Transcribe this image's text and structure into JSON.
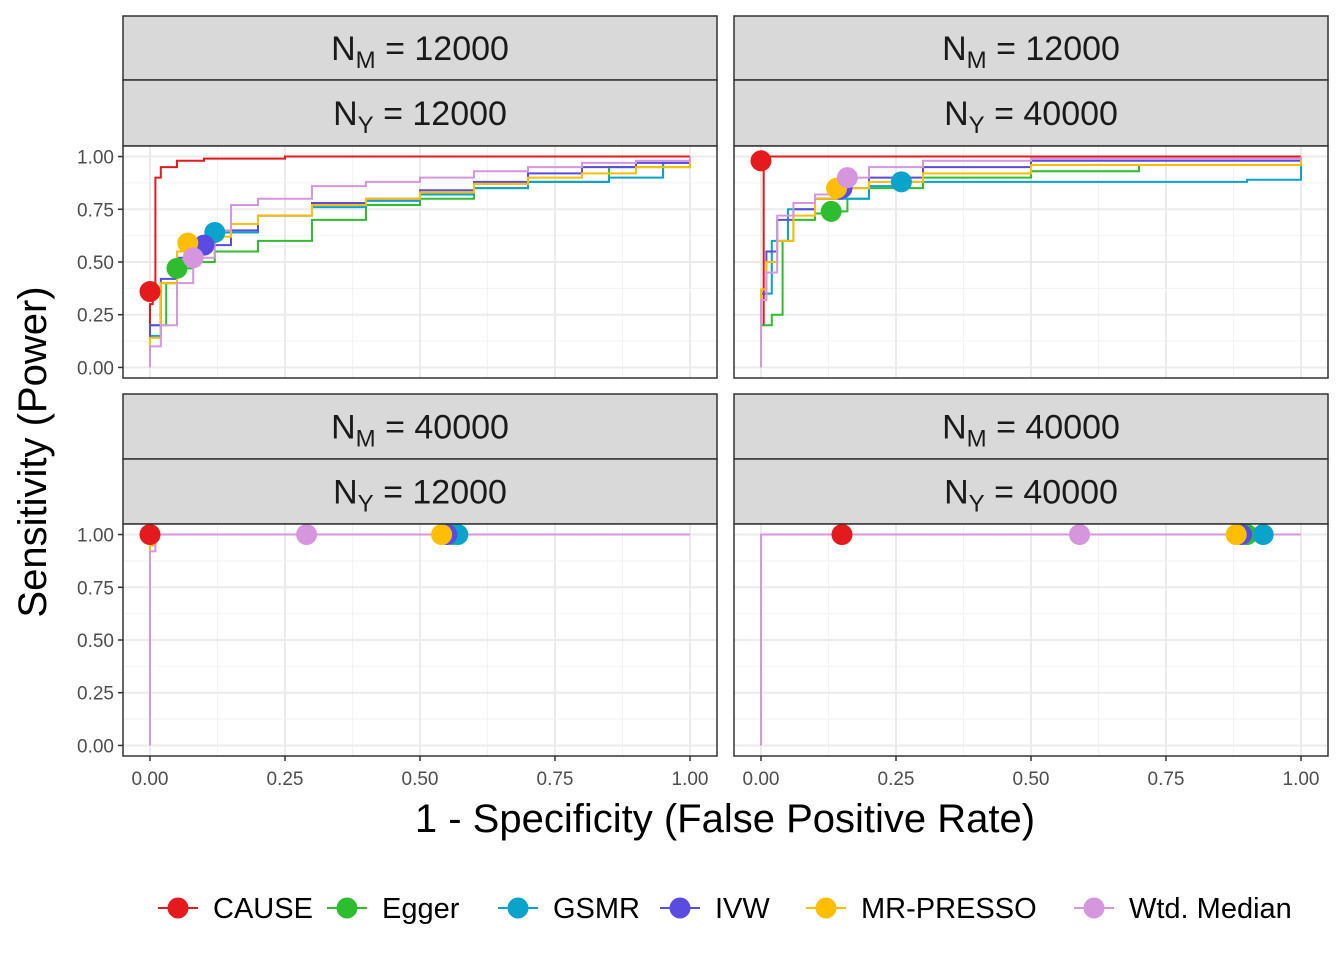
{
  "chart_data": {
    "type": "line",
    "xlabel": "1 - Specificity (False Positive Rate)",
    "ylabel": "Sensitivity (Power)",
    "xlim": [
      0,
      1
    ],
    "ylim": [
      0,
      1
    ],
    "x_ticks": [
      "0.00",
      "0.25",
      "0.50",
      "0.75",
      "1.00"
    ],
    "y_ticks": [
      "0.00",
      "0.25",
      "0.50",
      "0.75",
      "1.00"
    ],
    "grid": true,
    "legend_position": "bottom",
    "series_styles": [
      {
        "name": "CAUSE",
        "color": "#e41a1c"
      },
      {
        "name": "Egger",
        "color": "#2ebd2e"
      },
      {
        "name": "GSMR",
        "color": "#0aa3cc"
      },
      {
        "name": "IVW",
        "color": "#5a4ce0"
      },
      {
        "name": "MR-PRESSO",
        "color": "#ffbf00"
      },
      {
        "name": "Wtd. Median",
        "color": "#d696de"
      }
    ],
    "panels": [
      {
        "strip_top": {
          "var": "N",
          "sub": "M",
          "value": "= 12000"
        },
        "strip_bottom": {
          "var": "N",
          "sub": "Y",
          "value": "= 12000"
        },
        "series": [
          {
            "name": "CAUSE",
            "x": [
              0,
              0,
              0.005,
              0.01,
              0.02,
              0.05,
              0.1,
              0.25,
              1.0
            ],
            "y": [
              0,
              0.3,
              0.36,
              0.9,
              0.95,
              0.98,
              0.99,
              1.0,
              1.0
            ],
            "point": [
              0,
              0.36
            ]
          },
          {
            "name": "Egger",
            "x": [
              0,
              0,
              0.03,
              0.05,
              0.08,
              0.12,
              0.2,
              0.3,
              0.4,
              0.5,
              0.6,
              0.7,
              0.85,
              1.0
            ],
            "y": [
              0,
              0.2,
              0.4,
              0.47,
              0.5,
              0.55,
              0.6,
              0.7,
              0.77,
              0.8,
              0.85,
              0.88,
              0.95,
              1.0
            ],
            "point": [
              0.05,
              0.47
            ]
          },
          {
            "name": "GSMR",
            "x": [
              0,
              0,
              0.02,
              0.05,
              0.08,
              0.12,
              0.2,
              0.3,
              0.4,
              0.5,
              0.6,
              0.7,
              0.85,
              0.95,
              1.0
            ],
            "y": [
              0,
              0.15,
              0.4,
              0.5,
              0.58,
              0.64,
              0.72,
              0.76,
              0.79,
              0.82,
              0.85,
              0.88,
              0.9,
              0.97,
              1.0
            ],
            "point": [
              0.12,
              0.64
            ]
          },
          {
            "name": "IVW",
            "x": [
              0,
              0,
              0.02,
              0.05,
              0.08,
              0.1,
              0.15,
              0.2,
              0.3,
              0.4,
              0.5,
              0.6,
              0.7,
              0.8,
              0.9,
              1.0
            ],
            "y": [
              0,
              0.2,
              0.42,
              0.52,
              0.56,
              0.58,
              0.65,
              0.72,
              0.78,
              0.8,
              0.84,
              0.88,
              0.92,
              0.95,
              0.97,
              1.0
            ],
            "point": [
              0.1,
              0.58
            ]
          },
          {
            "name": "MR-PRESSO",
            "x": [
              0,
              0,
              0.02,
              0.05,
              0.07,
              0.1,
              0.15,
              0.2,
              0.3,
              0.4,
              0.5,
              0.6,
              0.7,
              0.8,
              0.9,
              1.0
            ],
            "y": [
              0,
              0.14,
              0.4,
              0.55,
              0.59,
              0.62,
              0.68,
              0.72,
              0.77,
              0.8,
              0.83,
              0.87,
              0.9,
              0.92,
              0.95,
              1.0
            ],
            "point": [
              0.07,
              0.59
            ]
          },
          {
            "name": "Wtd. Median",
            "x": [
              0,
              0,
              0.02,
              0.05,
              0.08,
              0.12,
              0.15,
              0.2,
              0.3,
              0.4,
              0.5,
              0.6,
              0.7,
              0.8,
              0.9,
              1.0
            ],
            "y": [
              0,
              0.1,
              0.2,
              0.4,
              0.52,
              0.65,
              0.77,
              0.8,
              0.86,
              0.88,
              0.9,
              0.93,
              0.95,
              0.97,
              0.98,
              1.0
            ],
            "point": [
              0.08,
              0.52
            ]
          }
        ]
      },
      {
        "strip_top": {
          "var": "N",
          "sub": "M",
          "value": "= 12000"
        },
        "strip_bottom": {
          "var": "N",
          "sub": "Y",
          "value": "= 40000"
        },
        "series": [
          {
            "name": "CAUSE",
            "x": [
              0,
              0,
              0.005,
              1.0
            ],
            "y": [
              0,
              0.2,
              1.0,
              1.0
            ],
            "point": [
              0,
              0.98
            ]
          },
          {
            "name": "Egger",
            "x": [
              0,
              0,
              0.02,
              0.04,
              0.06,
              0.1,
              0.13,
              0.16,
              0.2,
              0.3,
              0.5,
              0.7,
              1.0
            ],
            "y": [
              0,
              0.2,
              0.25,
              0.6,
              0.7,
              0.73,
              0.74,
              0.8,
              0.85,
              0.9,
              0.93,
              0.96,
              1.0
            ],
            "point": [
              0.13,
              0.74
            ]
          },
          {
            "name": "GSMR",
            "x": [
              0,
              0,
              0.02,
              0.05,
              0.1,
              0.2,
              0.26,
              0.3,
              0.5,
              0.7,
              0.9,
              1.0
            ],
            "y": [
              0,
              0.35,
              0.6,
              0.75,
              0.8,
              0.86,
              0.88,
              0.88,
              0.88,
              0.88,
              0.89,
              1.0
            ],
            "point": [
              0.26,
              0.88
            ]
          },
          {
            "name": "IVW",
            "x": [
              0,
              0,
              0.01,
              0.03,
              0.06,
              0.1,
              0.15,
              0.2,
              0.3,
              0.5,
              1.0
            ],
            "y": [
              0,
              0.35,
              0.55,
              0.7,
              0.75,
              0.8,
              0.85,
              0.9,
              0.95,
              0.98,
              1.0
            ],
            "point": [
              0.15,
              0.85
            ]
          },
          {
            "name": "MR-PRESSO",
            "x": [
              0,
              0,
              0.01,
              0.03,
              0.06,
              0.1,
              0.14,
              0.2,
              0.3,
              0.5,
              1.0
            ],
            "y": [
              0,
              0.37,
              0.5,
              0.6,
              0.72,
              0.8,
              0.85,
              0.88,
              0.92,
              0.96,
              1.0
            ],
            "point": [
              0.14,
              0.85
            ]
          },
          {
            "name": "Wtd. Median",
            "x": [
              0,
              0,
              0.01,
              0.03,
              0.06,
              0.1,
              0.16,
              0.2,
              0.3,
              0.5,
              1.0
            ],
            "y": [
              0,
              0.32,
              0.45,
              0.72,
              0.78,
              0.82,
              0.9,
              0.95,
              0.98,
              0.99,
              1.0
            ],
            "point": [
              0.16,
              0.9
            ]
          }
        ]
      },
      {
        "strip_top": {
          "var": "N",
          "sub": "M",
          "value": "= 40000"
        },
        "strip_bottom": {
          "var": "N",
          "sub": "Y",
          "value": "= 12000"
        },
        "series": [
          {
            "name": "CAUSE",
            "x": [
              0,
              0,
              0.01,
              1.0
            ],
            "y": [
              0,
              0.95,
              1.0,
              1.0
            ],
            "point": [
              0,
              1.0
            ]
          },
          {
            "name": "Egger",
            "x": [
              0,
              0,
              0.01,
              1.0
            ],
            "y": [
              0,
              0.95,
              1.0,
              1.0
            ],
            "point": [
              0.56,
              1.0
            ]
          },
          {
            "name": "GSMR",
            "x": [
              0,
              0,
              0.01,
              1.0
            ],
            "y": [
              0,
              0.95,
              1.0,
              1.0
            ],
            "point": [
              0.57,
              1.0
            ]
          },
          {
            "name": "IVW",
            "x": [
              0,
              0,
              0.01,
              1.0
            ],
            "y": [
              0,
              0.95,
              1.0,
              1.0
            ],
            "point": [
              0.55,
              1.0
            ]
          },
          {
            "name": "MR-PRESSO",
            "x": [
              0,
              0,
              0.01,
              1.0
            ],
            "y": [
              0,
              0.95,
              1.0,
              1.0
            ],
            "point": [
              0.54,
              1.0
            ]
          },
          {
            "name": "Wtd. Median",
            "x": [
              0,
              0,
              0.01,
              1.0
            ],
            "y": [
              0,
              0.92,
              1.0,
              1.0
            ],
            "point": [
              0.29,
              1.0
            ]
          }
        ]
      },
      {
        "strip_top": {
          "var": "N",
          "sub": "M",
          "value": "= 40000"
        },
        "strip_bottom": {
          "var": "N",
          "sub": "Y",
          "value": "= 40000"
        },
        "series": [
          {
            "name": "CAUSE",
            "x": [
              0,
              0,
              1.0
            ],
            "y": [
              0,
              1.0,
              1.0
            ],
            "point": [
              0.15,
              1.0
            ]
          },
          {
            "name": "Egger",
            "x": [
              0,
              0,
              1.0
            ],
            "y": [
              0,
              1.0,
              1.0
            ],
            "point": [
              0.9,
              1.0
            ]
          },
          {
            "name": "GSMR",
            "x": [
              0,
              0,
              1.0
            ],
            "y": [
              0,
              1.0,
              1.0
            ],
            "point": [
              0.93,
              1.0
            ]
          },
          {
            "name": "IVW",
            "x": [
              0,
              0,
              1.0
            ],
            "y": [
              0,
              1.0,
              1.0
            ],
            "point": [
              0.89,
              1.0
            ]
          },
          {
            "name": "MR-PRESSO",
            "x": [
              0,
              0,
              1.0
            ],
            "y": [
              0,
              1.0,
              1.0
            ],
            "point": [
              0.88,
              1.0
            ]
          },
          {
            "name": "Wtd. Median",
            "x": [
              0,
              0,
              1.0
            ],
            "y": [
              0,
              1.0,
              1.0
            ],
            "point": [
              0.59,
              1.0
            ]
          }
        ]
      }
    ]
  }
}
